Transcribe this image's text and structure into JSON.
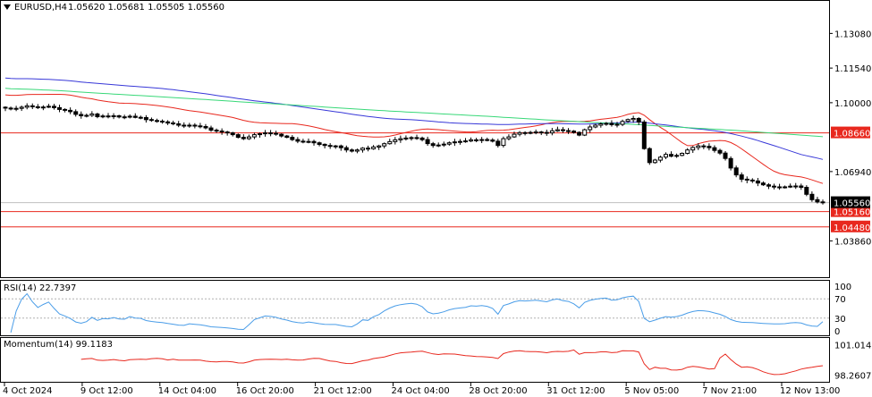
{
  "header": {
    "symbol_label": "EURUSD,H4",
    "ohlc": "1.05620 1.05681 1.05505 1.05560"
  },
  "chart_data": [
    {
      "type": "candlestick",
      "title": "EURUSD,H4",
      "symbol": "EURUSD",
      "timeframe": "H4",
      "last_ohlc": {
        "open": 1.0562,
        "high": 1.05681,
        "low": 1.05505,
        "close": 1.0556
      },
      "y_ticks": [
        "1.13080",
        "1.11540",
        "1.10000",
        "1.06940",
        "1.03860"
      ],
      "ylim": [
        1.0304,
        1.1385
      ],
      "x_ticks": [
        "4 Oct 2024",
        "9 Oct 12:00",
        "14 Oct 04:00",
        "16 Oct 20:00",
        "21 Oct 12:00",
        "24 Oct 04:00",
        "28 Oct 20:00",
        "31 Oct 12:00",
        "5 Nov 05:00",
        "7 Nov 21:00",
        "12 Nov 13:00"
      ],
      "horizontal_lines": [
        {
          "price": 1.0866,
          "label": "1.08660",
          "color": "#e8281e"
        },
        {
          "price": 1.0516,
          "label": "1.05160",
          "color": "#e8281e"
        },
        {
          "price": 1.0448,
          "label": "1.04480",
          "color": "#e8281e"
        }
      ],
      "current_price": {
        "price": 1.0556,
        "label": "1.05560"
      },
      "closes": [
        1.0976,
        1.0972,
        1.0975,
        1.098,
        1.0986,
        1.0982,
        1.0978,
        1.0981,
        1.0984,
        1.0978,
        1.097,
        1.0966,
        1.096,
        1.0948,
        1.0942,
        1.0944,
        1.095,
        1.0938,
        1.0941,
        1.094,
        1.0942,
        1.0937,
        1.0936,
        1.094,
        1.0935,
        1.0934,
        1.0925,
        1.0921,
        1.0918,
        1.0915,
        1.091,
        1.0906,
        1.09,
        1.0898,
        1.09,
        1.0897,
        1.0894,
        1.0888,
        1.0878,
        1.0874,
        1.087,
        1.0866,
        1.0858,
        1.0846,
        1.084,
        1.0848,
        1.0858,
        1.0862,
        1.0866,
        1.0864,
        1.086,
        1.0852,
        1.0846,
        1.0836,
        1.0829,
        1.0826,
        1.0828,
        1.0822,
        1.0815,
        1.081,
        1.0808,
        1.0808,
        1.08,
        1.079,
        1.0785,
        1.079,
        1.0798,
        1.0795,
        1.0803,
        1.0808,
        1.0818,
        1.0827,
        1.0835,
        1.084,
        1.0843,
        1.0845,
        1.0843,
        1.0836,
        1.0818,
        1.081,
        1.0812,
        1.0816,
        1.0822,
        1.0826,
        1.0828,
        1.083,
        1.0835,
        1.0834,
        1.0836,
        1.0834,
        1.0829,
        1.081,
        1.084,
        1.0848,
        1.086,
        1.0867,
        1.0866,
        1.0868,
        1.087,
        1.0868,
        1.0866,
        1.0875,
        1.088,
        1.0876,
        1.0874,
        1.0868,
        1.0856,
        1.088,
        1.0892,
        1.09,
        1.0906,
        1.0908,
        1.0902,
        1.0904,
        1.0917,
        1.0925,
        1.093,
        1.0914,
        1.0796,
        1.0734,
        1.0745,
        1.0758,
        1.077,
        1.0762,
        1.0766,
        1.0775,
        1.079,
        1.0801,
        1.0808,
        1.0806,
        1.08,
        1.0788,
        1.0776,
        1.0752,
        1.071,
        1.0679,
        1.066,
        1.0656,
        1.0652,
        1.0643,
        1.0635,
        1.0629,
        1.0626,
        1.0625,
        1.0626,
        1.0629,
        1.063,
        1.0624,
        1.0593,
        1.0569,
        1.0559,
        1.0556
      ],
      "indicators": [
        {
          "name": "MA red",
          "color": "#e8281e",
          "start": 1.1035,
          "end": 1.0641
        },
        {
          "name": "MA blue",
          "color": "#3838d8",
          "start": 1.111,
          "end": 1.0748
        },
        {
          "name": "MA green",
          "color": "#38d878",
          "start": 1.1064,
          "end": 1.0849
        }
      ]
    },
    {
      "type": "line",
      "title": "RSI(14) 22.7397",
      "series": [
        {
          "name": "RSI(14)",
          "color": "#4a9de8"
        }
      ],
      "y_ticks": [
        "100",
        "70",
        "30",
        "0"
      ],
      "ylim": [
        0,
        100
      ],
      "levels": [
        70,
        30
      ],
      "last_value": 22.7397
    },
    {
      "type": "line",
      "title": "Momentum(14) 99.1183",
      "series": [
        {
          "name": "Momentum(14)",
          "color": "#e8281e"
        }
      ],
      "y_ticks": [
        "101.0142",
        "98.2607"
      ],
      "ylim": [
        97.9,
        101.3
      ],
      "last_value": 99.1183
    }
  ]
}
